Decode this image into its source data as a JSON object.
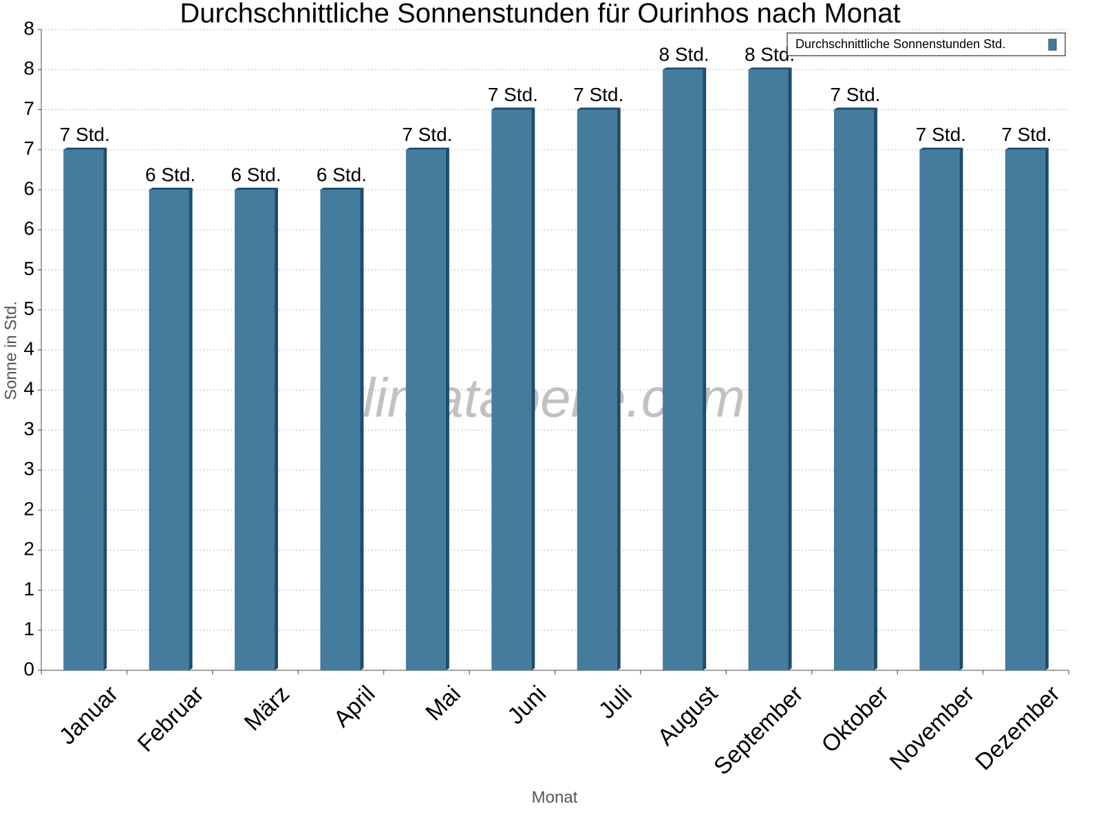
{
  "chart_data": {
    "type": "bar",
    "title": "Durchschnittliche Sonnenstunden für Ourinhos nach Monat",
    "x_label": "Monat",
    "y_label": "Sonne in Std.",
    "watermark": "klimatabelle.com",
    "categories": [
      "Januar",
      "Februar",
      "März",
      "April",
      "Mai",
      "Juni",
      "Juli",
      "August",
      "September",
      "Oktober",
      "November",
      "Dezember"
    ],
    "series": [
      {
        "name": "Durchschnittliche Sonnenstunden Std.",
        "color": "#457b9d",
        "values": [
          6.5,
          6.0,
          6.0,
          6.0,
          6.5,
          7.0,
          7.0,
          7.5,
          7.5,
          7.0,
          6.5,
          6.5
        ],
        "value_labels": [
          "7 Std.",
          "6 Std.",
          "6 Std.",
          "6 Std.",
          "7 Std.",
          "7 Std.",
          "7 Std.",
          "8 Std.",
          "8 Std.",
          "7 Std.",
          "7 Std.",
          "7 Std."
        ]
      }
    ],
    "ylim": [
      0,
      8
    ],
    "yticks": [
      0,
      {
        "value": 0.5,
        "label": "1"
      },
      1,
      {
        "value": 1.5,
        "label": "2"
      },
      2,
      {
        "value": 2.5,
        "label": "3"
      },
      3,
      {
        "value": 3.5,
        "label": "4"
      },
      4,
      {
        "value": 4.5,
        "label": "5"
      },
      5,
      {
        "value": 5.5,
        "label": "6"
      },
      6,
      {
        "value": 6.5,
        "label": "7"
      },
      7,
      {
        "value": 7.5,
        "label": "8"
      },
      8
    ],
    "grid": true,
    "legend": "top-right"
  }
}
